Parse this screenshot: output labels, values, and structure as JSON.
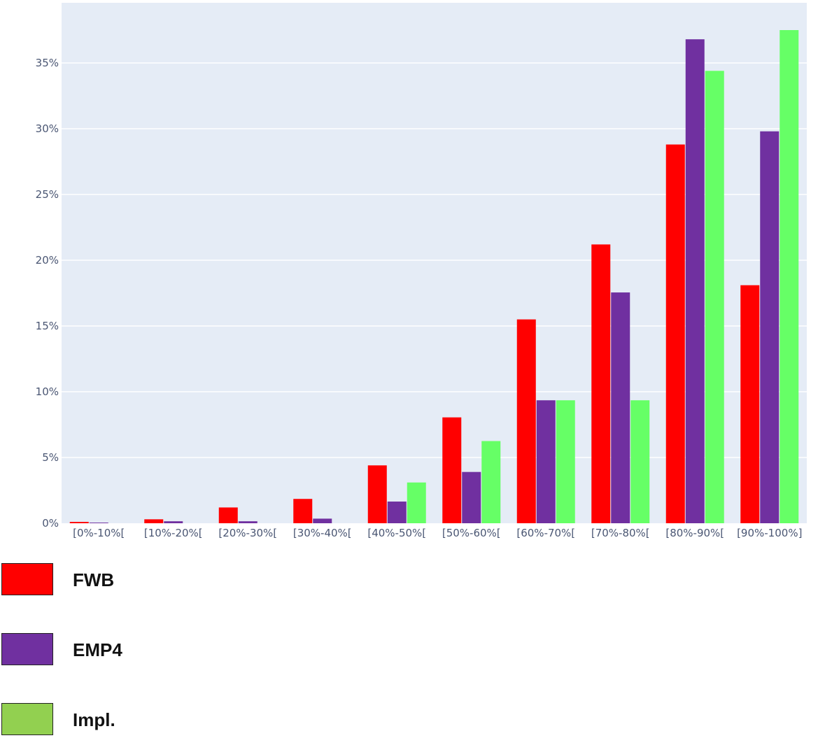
{
  "chart_data": {
    "type": "bar",
    "categories": [
      "[0%-10%[",
      "[10%-20%[",
      "[20%-30%[",
      "[30%-40%[",
      "[40%-50%[",
      "[50%-60%[",
      "[60%-70%[",
      "[70%-80%[",
      "[80%-90%[",
      "[90%-100%]"
    ],
    "series": [
      {
        "name": "FWB",
        "color": "#ff0000",
        "values": [
          0.1,
          0.3,
          1.2,
          1.85,
          4.4,
          8.05,
          15.5,
          21.2,
          28.8,
          18.1
        ]
      },
      {
        "name": "EMP4",
        "color": "#7030a0",
        "values": [
          0.05,
          0.15,
          0.15,
          0.35,
          1.65,
          3.9,
          9.35,
          17.55,
          36.8,
          29.8
        ]
      },
      {
        "name": "Impl.",
        "color": "#66ff66",
        "legend_color": "#92d050",
        "values": [
          0.0,
          0.0,
          0.0,
          0.0,
          3.1,
          6.25,
          9.35,
          9.35,
          34.4,
          37.5
        ]
      }
    ],
    "yticks": [
      0,
      5,
      10,
      15,
      20,
      25,
      30,
      35
    ],
    "ytick_labels": [
      "0%",
      "5%",
      "10%",
      "15%",
      "20%",
      "25%",
      "30%",
      "35%"
    ],
    "ylim": [
      0,
      40
    ],
    "grid": true,
    "plot_background": "#e5ecf6",
    "legend_position": "bottom-left"
  }
}
